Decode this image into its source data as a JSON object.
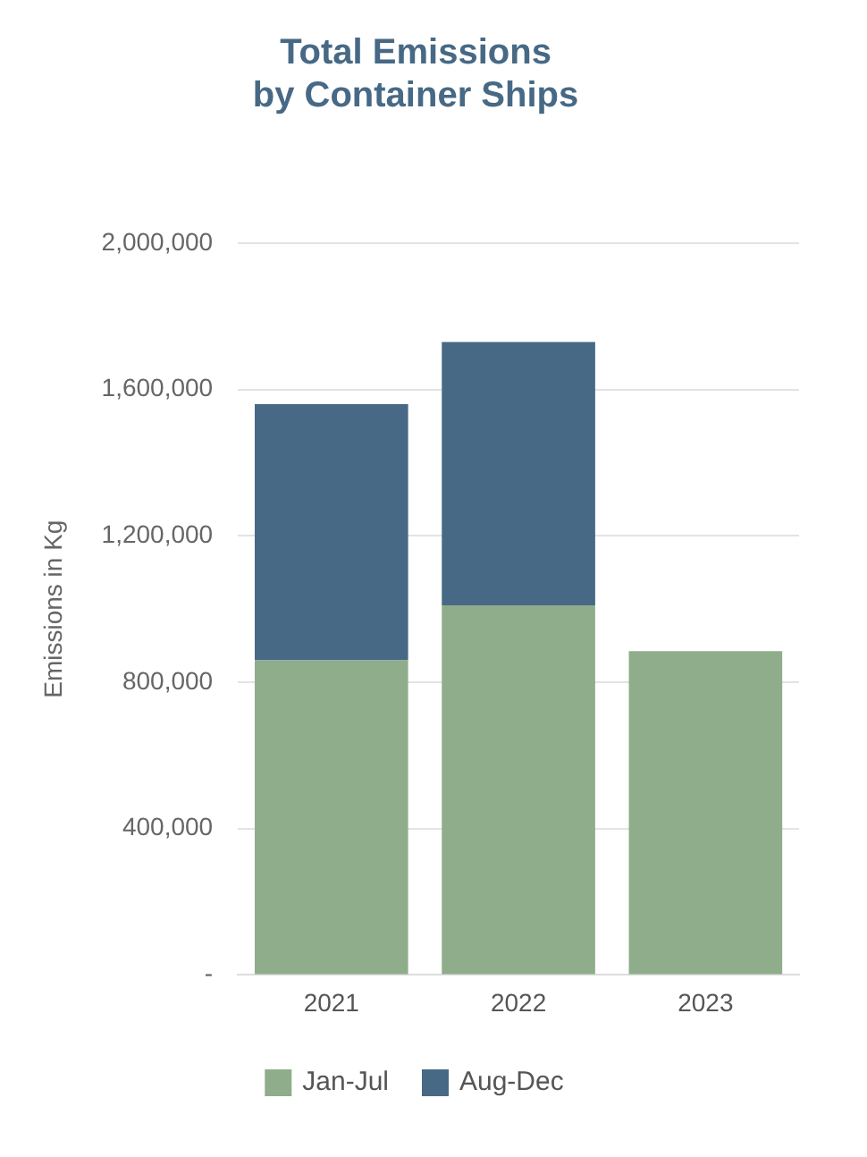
{
  "chart_data": {
    "type": "bar",
    "title": "Total Emissions\nby Container Ships",
    "ylabel": "Emissions in Kg",
    "categories": [
      "2021",
      "2022",
      "2023"
    ],
    "series": [
      {
        "name": "Jan-Jul",
        "color": "#8fad8b",
        "values": [
          860000,
          1010000,
          885000
        ]
      },
      {
        "name": "Aug-Dec",
        "color": "#476985",
        "values": [
          700000,
          720000,
          null
        ]
      }
    ],
    "stacked": true,
    "ylim": [
      0,
      2000000
    ],
    "yticks": [
      {
        "value": 0,
        "label": "-"
      },
      {
        "value": 400000,
        "label": "400,000"
      },
      {
        "value": 800000,
        "label": "800,000"
      },
      {
        "value": 1200000,
        "label": "1,200,000"
      },
      {
        "value": 1600000,
        "label": "1,600,000"
      },
      {
        "value": 2000000,
        "label": "2,000,000"
      }
    ],
    "grid": "y",
    "legend": "bottom"
  }
}
